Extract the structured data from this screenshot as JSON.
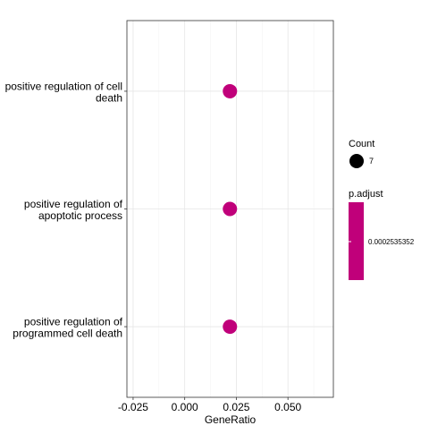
{
  "chart_data": {
    "type": "scatter",
    "xlabel": "GeneRatio",
    "ylabel": "",
    "xlim": [
      -0.028,
      0.072
    ],
    "x_ticks": [
      -0.025,
      0.0,
      0.025,
      0.05
    ],
    "x_tick_labels": [
      "-0.025",
      "0.000",
      "0.025",
      "0.050"
    ],
    "grid": true,
    "categories": [
      [
        "positive regulation of cell",
        "death"
      ],
      [
        "positive regulation of",
        "apoptotic process"
      ],
      [
        "positive regulation of",
        "programmed cell death"
      ]
    ],
    "points": [
      {
        "category_index": 0,
        "x": 0.0219,
        "count": 7,
        "p_adjust": 0.0002535352
      },
      {
        "category_index": 1,
        "x": 0.0219,
        "count": 7,
        "p_adjust": 0.0002535352
      },
      {
        "category_index": 2,
        "x": 0.0219,
        "count": 7,
        "p_adjust": 0.0002535352
      }
    ],
    "point_color": "#C0007A",
    "legend": {
      "position": "right",
      "count_title": "Count",
      "count_label": "7",
      "padjust_title": "p.adjust",
      "padjust_label": "0.0002535352",
      "padjust_color": "#C0007A"
    }
  }
}
